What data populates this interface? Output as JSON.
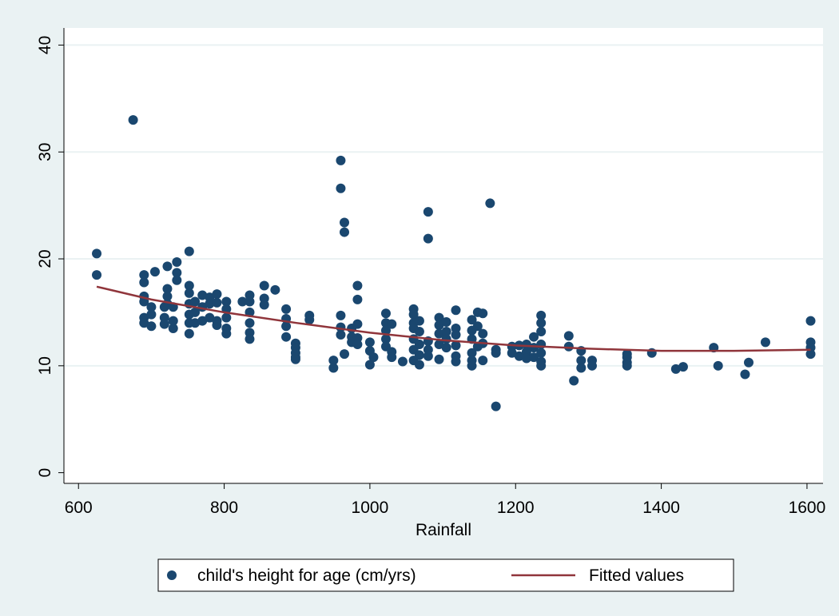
{
  "chart_data": {
    "type": "scatter",
    "xlabel": "Rainfall",
    "xlim": [
      580,
      1622
    ],
    "xticks": [
      600,
      800,
      1000,
      1200,
      1400,
      1600
    ],
    "ylim": [
      -1,
      41.6
    ],
    "yticks": [
      0,
      10,
      20,
      30,
      40
    ],
    "grid": true,
    "legend": "bottom",
    "series": [
      {
        "name": "child's height for age (cm/yrs)",
        "type": "scatter",
        "color": "#1a476f",
        "x": [
          625,
          625,
          675,
          690,
          690,
          690,
          690,
          690,
          690,
          700,
          700,
          700,
          705,
          718,
          718,
          718,
          722,
          722,
          722,
          722,
          730,
          730,
          730,
          735,
          735,
          735,
          752,
          752,
          752,
          752,
          752,
          752,
          752,
          760,
          760,
          760,
          770,
          770,
          770,
          780,
          780,
          780,
          790,
          790,
          790,
          790,
          803,
          803,
          803,
          803,
          803,
          825,
          835,
          835,
          835,
          835,
          835,
          835,
          855,
          855,
          855,
          870,
          885,
          885,
          885,
          885,
          898,
          898,
          898,
          898,
          898,
          917,
          917,
          950,
          950,
          960,
          960,
          960,
          960,
          960,
          965,
          965,
          965,
          975,
          975,
          975,
          983,
          983,
          983,
          983,
          983,
          1000,
          1000,
          1000,
          1005,
          1022,
          1022,
          1022,
          1022,
          1022,
          1030,
          1030,
          1030,
          1045,
          1060,
          1060,
          1060,
          1060,
          1060,
          1060,
          1060,
          1068,
          1068,
          1068,
          1068,
          1068,
          1080,
          1080,
          1080,
          1080,
          1080,
          1095,
          1095,
          1095,
          1095,
          1095,
          1105,
          1105,
          1105,
          1105,
          1118,
          1118,
          1118,
          1118,
          1118,
          1118,
          1140,
          1140,
          1140,
          1140,
          1140,
          1140,
          1148,
          1148,
          1148,
          1155,
          1155,
          1155,
          1155,
          1165,
          1173,
          1173,
          1173,
          1195,
          1195,
          1205,
          1205,
          1215,
          1215,
          1215,
          1225,
          1225,
          1225,
          1235,
          1235,
          1235,
          1235,
          1235,
          1235,
          1235,
          1273,
          1273,
          1280,
          1290,
          1290,
          1290,
          1305,
          1305,
          1353,
          1353,
          1353,
          1353,
          1387,
          1420,
          1430,
          1472,
          1478,
          1515,
          1520,
          1543,
          1605,
          1605,
          1605,
          1605
        ],
        "values": [
          20.5,
          18.5,
          33,
          18.5,
          17.8,
          16.5,
          16,
          14.5,
          14,
          15.5,
          14.8,
          13.7,
          18.8,
          15.5,
          14.5,
          13.9,
          19.3,
          17.2,
          16.5,
          15.8,
          15.5,
          14.2,
          13.5,
          19.7,
          18.7,
          18,
          20.7,
          17.5,
          16.8,
          15.8,
          14.8,
          14,
          13,
          16,
          15,
          14,
          16.6,
          15.5,
          14.2,
          16.4,
          15.8,
          14.5,
          16.7,
          15.9,
          14.2,
          13.8,
          16,
          15.3,
          14.5,
          13.5,
          13,
          16,
          16.6,
          16,
          15,
          14,
          13.1,
          12.5,
          17.5,
          16.3,
          15.7,
          17.1,
          15.3,
          14.4,
          13.7,
          12.7,
          12.1,
          11.7,
          11.2,
          10.8,
          10.6,
          14.7,
          14.3,
          10.5,
          9.8,
          29.2,
          26.6,
          14.7,
          13.6,
          12.9,
          23.4,
          22.5,
          11.1,
          13.5,
          12.7,
          12.2,
          17.5,
          16.2,
          13.9,
          12.6,
          12,
          12.2,
          11.4,
          10.1,
          10.8,
          14.9,
          14,
          13.3,
          12.5,
          11.8,
          13.9,
          11.3,
          10.8,
          10.4,
          15.3,
          14.8,
          14,
          13.5,
          12.5,
          11.5,
          10.5,
          14.2,
          13.2,
          12,
          11,
          10.1,
          24.4,
          21.9,
          12.3,
          11.5,
          10.9,
          14.5,
          13.8,
          13,
          12,
          10.6,
          14.1,
          13.2,
          12.5,
          11.7,
          15.2,
          13.5,
          12.9,
          11.9,
          10.9,
          10.4,
          14.3,
          13.3,
          12.5,
          11.2,
          10.5,
          10,
          15,
          13.7,
          11.8,
          14.9,
          13,
          12.1,
          10.5,
          25.2,
          11.5,
          11.2,
          6.2,
          11.8,
          11.2,
          11.9,
          10.9,
          12,
          11.3,
          10.7,
          12.7,
          11.7,
          10.8,
          14.7,
          14,
          13.2,
          12,
          11.2,
          10.4,
          10,
          12.8,
          11.8,
          8.6,
          11.4,
          10.5,
          9.8,
          10.5,
          10,
          11.1,
          10.8,
          10.3,
          10,
          11.2,
          9.7,
          9.9,
          11.7,
          10,
          9.2,
          10.3,
          12.2,
          14.2,
          12.2,
          11.7,
          11.1
        ]
      },
      {
        "name": "Fitted values",
        "type": "line",
        "color": "#90353b",
        "x": [
          625,
          700,
          800,
          900,
          1000,
          1100,
          1200,
          1300,
          1400,
          1500,
          1605
        ],
        "values": [
          17.4,
          16.2,
          15.0,
          14.0,
          13.1,
          12.4,
          11.9,
          11.6,
          11.4,
          11.4,
          11.5
        ]
      }
    ]
  }
}
